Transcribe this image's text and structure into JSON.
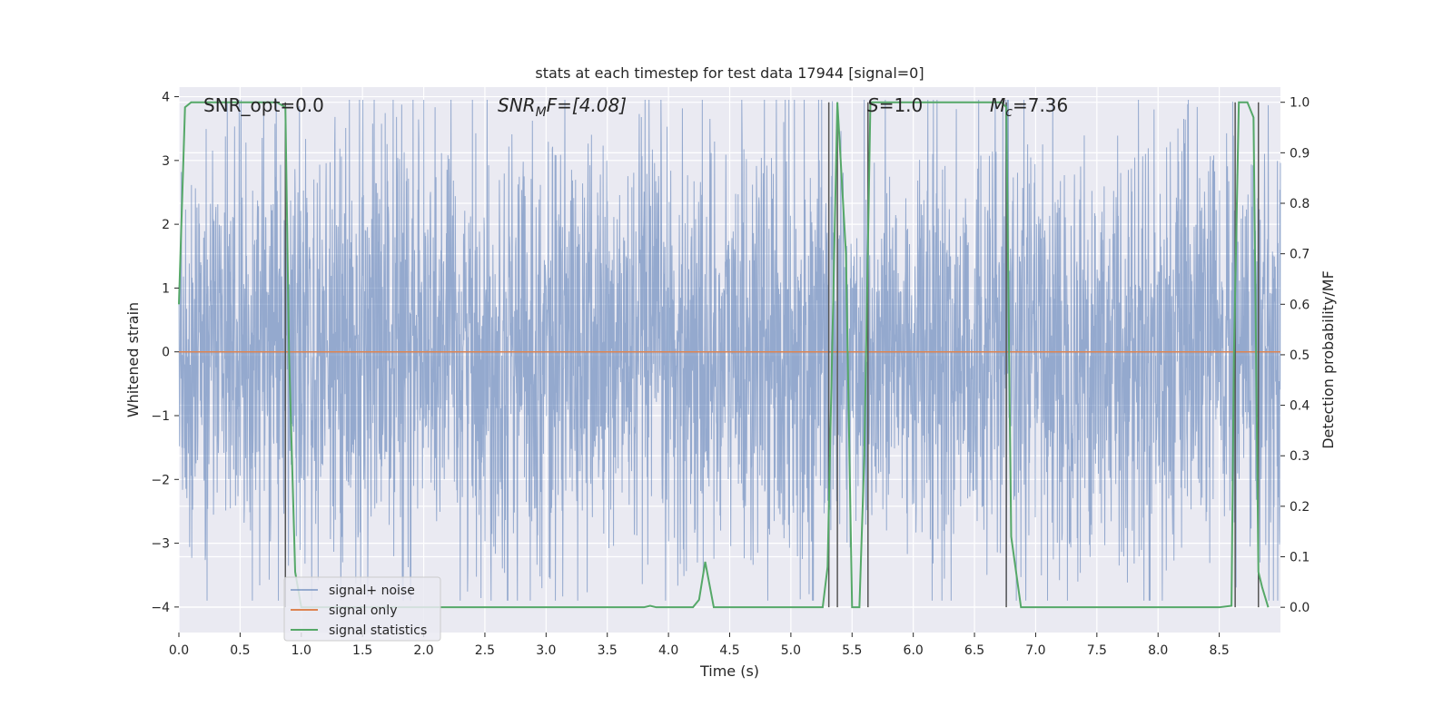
{
  "chart_data": {
    "type": "line",
    "title": "stats at each timestep for test data 17944 [signal=0]",
    "xlabel": "Time (s)",
    "ylabel": "Whitened strain",
    "ylabel_right": "Detection probability/MF",
    "xlim": [
      0.0,
      9.0
    ],
    "ylim": [
      -4.4,
      4.15
    ],
    "ylim_right": [
      -0.05,
      1.03
    ],
    "x_ticks": [
      "0.0",
      "0.5",
      "1.0",
      "1.5",
      "2.0",
      "2.5",
      "3.0",
      "3.5",
      "4.0",
      "4.5",
      "5.0",
      "5.5",
      "6.0",
      "6.5",
      "7.0",
      "7.5",
      "8.0",
      "8.5"
    ],
    "y_ticks": [
      "4",
      "3",
      "2",
      "1",
      "0",
      "−1",
      "−2",
      "−3",
      "−4"
    ],
    "y_ticks_right": [
      "1.0",
      "0.9",
      "0.8",
      "0.7",
      "0.6",
      "0.5",
      "0.4",
      "0.3",
      "0.2",
      "0.1",
      "0.0"
    ],
    "grid": true,
    "legend_position": "lower-left",
    "annotations": {
      "snr_opt": "SNR_opt=0.0",
      "snr_mf_main": "SNR",
      "snr_mf_sub": "M",
      "snr_mf_rest": "F=[4.08]",
      "s_main": "S",
      "s_rest": "=1.0",
      "mc_main": "M",
      "mc_sub": "c",
      "mc_rest": "=7.36"
    },
    "series": [
      {
        "name": "signal+ noise",
        "color": "#4c72b0",
        "description_envelope": {
          "typical_abs": 2.3,
          "peak_range": [
            -3.9,
            3.95
          ]
        }
      },
      {
        "name": "signal only",
        "color": "#dd8452",
        "values_constant": 0.0
      },
      {
        "name": "signal statistics",
        "color": "#55a868",
        "axis": "right",
        "x": [
          0.0,
          0.05,
          0.1,
          0.2,
          0.3,
          0.4,
          0.5,
          0.6,
          0.7,
          0.8,
          0.87,
          0.9,
          0.95,
          1.0,
          1.5,
          2.0,
          2.5,
          3.0,
          3.5,
          3.8,
          3.85,
          3.9,
          4.0,
          4.2,
          4.25,
          4.3,
          4.37,
          4.5,
          5.0,
          5.26,
          5.3,
          5.38,
          5.45,
          5.5,
          5.56,
          5.6,
          5.65,
          5.7,
          6.0,
          6.5,
          6.72,
          6.76,
          6.8,
          6.88,
          7.0,
          7.5,
          8.0,
          8.5,
          8.6,
          8.62,
          8.66,
          8.73,
          8.78,
          8.82,
          8.85,
          8.9
        ],
        "values": [
          0.6,
          0.99,
          1.0,
          1.0,
          1.0,
          1.0,
          1.0,
          1.0,
          1.0,
          1.0,
          0.99,
          0.5,
          0.07,
          0.0,
          0.0,
          0.0,
          0.0,
          0.0,
          0.0,
          0.0,
          0.003,
          0.0,
          0.0,
          0.0,
          0.015,
          0.09,
          0.0,
          0.0,
          0.0,
          0.0,
          0.08,
          1.0,
          0.7,
          0.0,
          0.0,
          0.3,
          1.0,
          1.0,
          1.0,
          1.0,
          1.0,
          0.99,
          0.14,
          0.0,
          0.0,
          0.0,
          0.0,
          0.0,
          0.003,
          0.5,
          1.0,
          1.0,
          0.97,
          0.07,
          0.04,
          0.0
        ]
      }
    ],
    "vertical_markers_x": [
      0.87,
      5.31,
      5.38,
      5.63,
      6.76,
      8.63,
      8.82
    ]
  }
}
